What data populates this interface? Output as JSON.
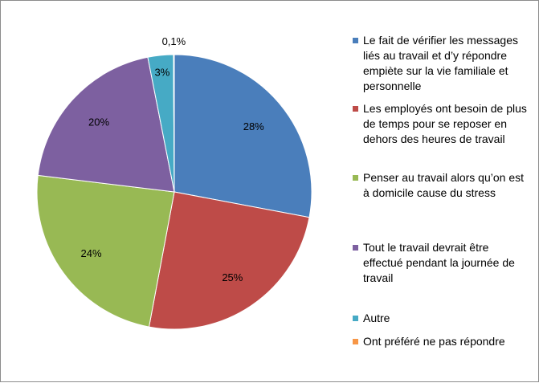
{
  "chart_data": {
    "type": "pie",
    "start_angle_deg": 0,
    "direction": "clockwise",
    "legend_position": "right",
    "slices": [
      {
        "label": "Le fait de vérifier les messages liés au travail et d’y répondre empiète sur la vie familiale et personnelle",
        "value": 28,
        "display": "28%",
        "color": "#4a7ebb"
      },
      {
        "label": "Les employés ont besoin de plus de temps pour se reposer en dehors des heures de travail",
        "value": 25,
        "display": "25%",
        "color": "#be4b48"
      },
      {
        "label": "Penser au travail alors qu’on est à domicile cause du stress",
        "value": 24,
        "display": "24%",
        "color": "#98b954"
      },
      {
        "label": "Tout le travail devrait être effectué pendant la journée de travail",
        "value": 20,
        "display": "20%",
        "color": "#7d60a0"
      },
      {
        "label": "Autre",
        "value": 3,
        "display": "3%",
        "color": "#46aac5"
      },
      {
        "label": "Ont préféré ne pas répondre",
        "value": 0.1,
        "display": "0,1%",
        "color": "#f79646"
      }
    ]
  }
}
